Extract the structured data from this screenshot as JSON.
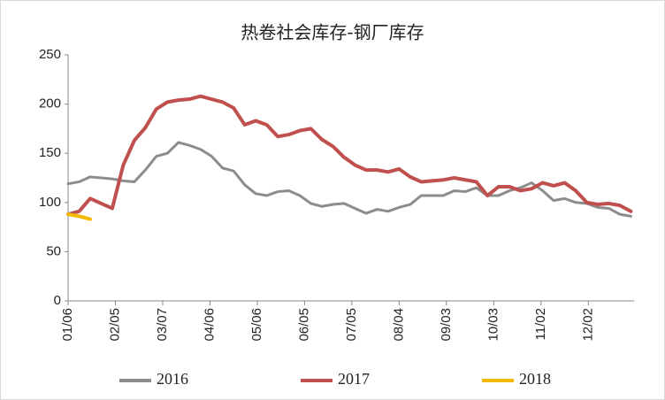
{
  "chart_data": {
    "type": "line",
    "title": "热卷社会库存-钢厂库存",
    "x": [
      6,
      13,
      20,
      27,
      34,
      41,
      48,
      55,
      62,
      69,
      76,
      83,
      90,
      97,
      104,
      111,
      118,
      125,
      132,
      139,
      146,
      153,
      160,
      167,
      174,
      181,
      188,
      195,
      202,
      209,
      216,
      223,
      230,
      237,
      244,
      251,
      258,
      265,
      272,
      279,
      286,
      293,
      300,
      307,
      314,
      321,
      328,
      335,
      342,
      349,
      356,
      363
    ],
    "xlim": [
      6,
      365
    ],
    "xticks": [
      {
        "value": 6,
        "label": "01/06"
      },
      {
        "value": 36,
        "label": "02/05"
      },
      {
        "value": 66,
        "label": "03/07"
      },
      {
        "value": 96,
        "label": "04/06"
      },
      {
        "value": 126,
        "label": "05/06"
      },
      {
        "value": 156,
        "label": "06/05"
      },
      {
        "value": 186,
        "label": "07/05"
      },
      {
        "value": 216,
        "label": "08/04"
      },
      {
        "value": 246,
        "label": "09/03"
      },
      {
        "value": 276,
        "label": "10/03"
      },
      {
        "value": 306,
        "label": "11/02"
      },
      {
        "value": 336,
        "label": "12/02"
      }
    ],
    "ylim": [
      0,
      250
    ],
    "yticks": [
      0,
      50,
      100,
      150,
      200,
      250
    ],
    "grid": false,
    "legend": "bottom",
    "series": [
      {
        "name": "2016",
        "color": "#8c8c8c",
        "values": [
          119,
          121,
          126,
          125,
          124,
          122,
          121,
          133,
          147,
          150,
          161,
          158,
          154,
          147,
          135,
          132,
          118,
          109,
          107,
          111,
          112,
          107,
          99,
          96,
          98,
          99,
          94,
          89,
          93,
          91,
          95,
          98,
          107,
          107,
          107,
          112,
          111,
          115,
          107,
          107,
          112,
          115,
          120,
          112,
          102,
          104,
          100,
          99,
          95,
          94,
          88,
          86
        ]
      },
      {
        "name": "2017",
        "color": "#c0504d",
        "values": [
          88,
          91,
          104,
          99,
          94,
          138,
          163,
          176,
          195,
          202,
          204,
          205,
          208,
          205,
          202,
          196,
          179,
          183,
          179,
          167,
          169,
          173,
          175,
          164,
          157,
          146,
          138,
          133,
          133,
          131,
          134,
          126,
          121,
          122,
          123,
          125,
          123,
          121,
          107,
          116,
          116,
          112,
          114,
          120,
          117,
          120,
          112,
          100,
          98,
          99,
          97,
          91
        ]
      },
      {
        "name": "2018",
        "color": "#f5b800",
        "values": [
          88,
          86,
          83,
          null,
          null,
          null,
          null,
          null,
          null,
          null,
          null,
          null,
          null,
          null,
          null,
          null,
          null,
          null,
          null,
          null,
          null,
          null,
          null,
          null,
          null,
          null,
          null,
          null,
          null,
          null,
          null,
          null,
          null,
          null,
          null,
          null,
          null,
          null,
          null,
          null,
          null,
          null,
          null,
          null,
          null,
          null,
          null,
          null,
          null,
          null,
          null,
          null
        ]
      }
    ]
  }
}
